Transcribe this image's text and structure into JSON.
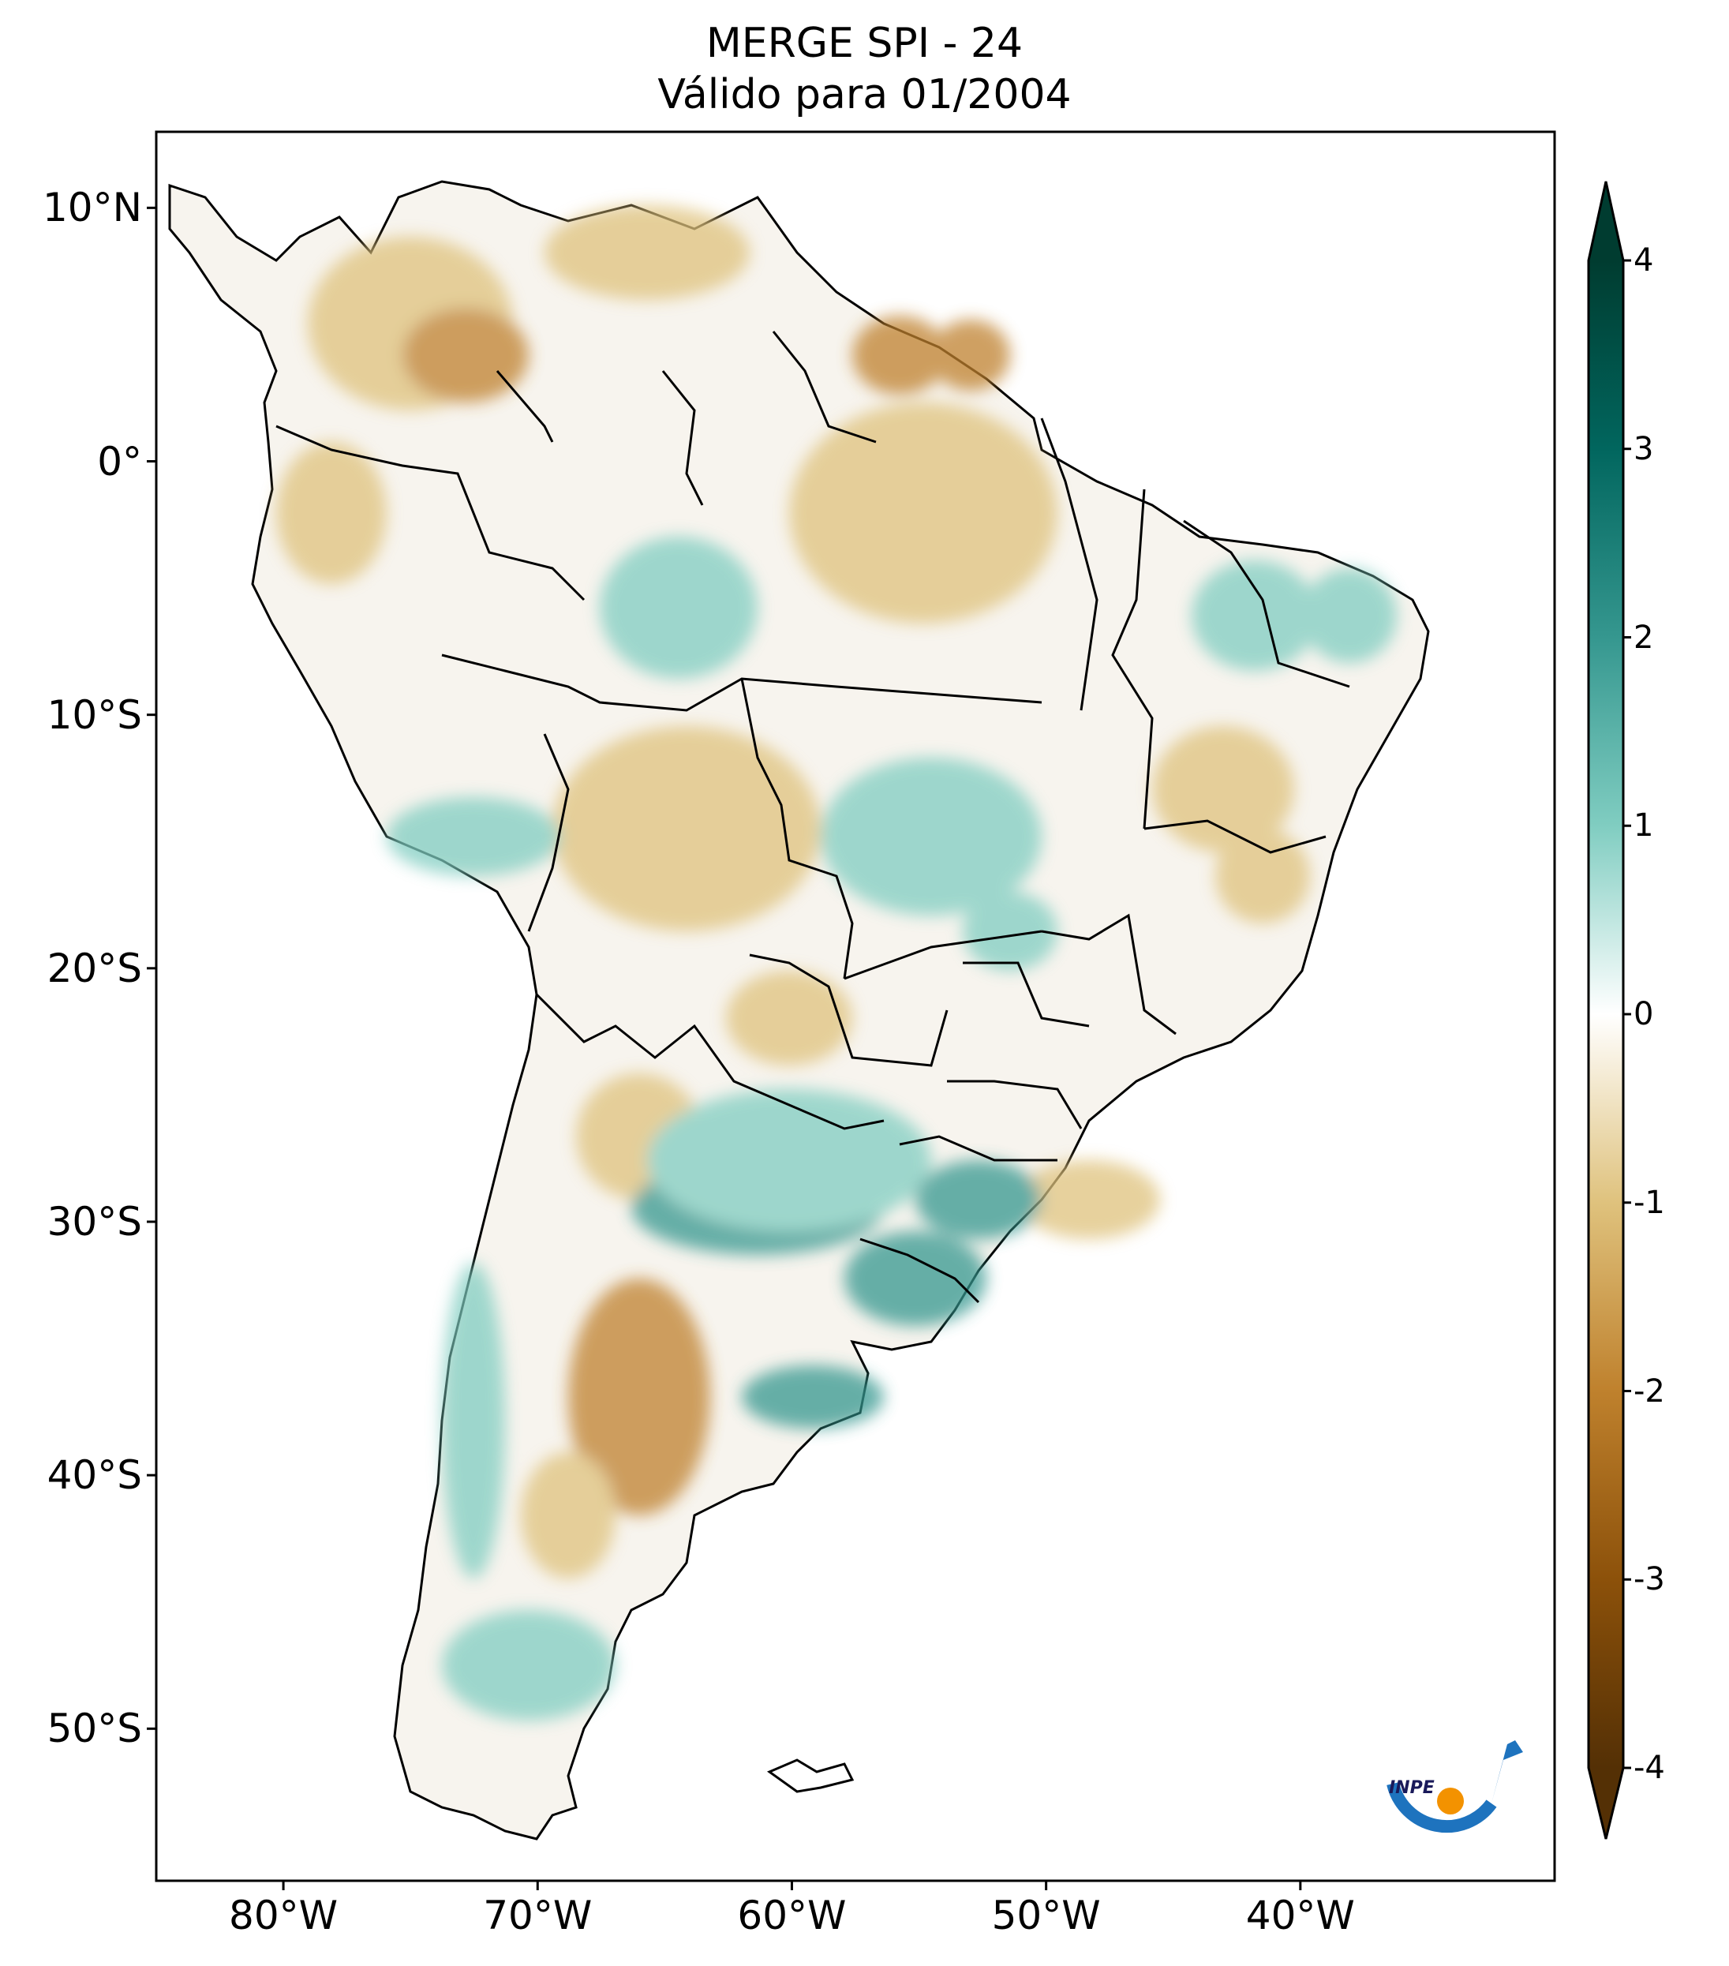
{
  "title": {
    "line1": "MERGE   SPI - 24",
    "line2": "Válido para 01/2004"
  },
  "axes": {
    "lat_ticks": [
      {
        "value": 10,
        "label": "10°N"
      },
      {
        "value": 0,
        "label": "0°"
      },
      {
        "value": -10,
        "label": "10°S"
      },
      {
        "value": -20,
        "label": "20°S"
      },
      {
        "value": -30,
        "label": "30°S"
      },
      {
        "value": -40,
        "label": "40°S"
      },
      {
        "value": -50,
        "label": "50°S"
      }
    ],
    "lon_ticks": [
      {
        "value": -80,
        "label": "80°W"
      },
      {
        "value": -70,
        "label": "70°W"
      },
      {
        "value": -60,
        "label": "60°W"
      },
      {
        "value": -50,
        "label": "50°W"
      },
      {
        "value": -40,
        "label": "40°W"
      }
    ],
    "lon_range": [
      -85,
      -30
    ],
    "lat_range": [
      -56,
      13
    ]
  },
  "colorbar": {
    "min": -4,
    "max": 4,
    "ticks": [
      "-4",
      "-3",
      "-2",
      "-1",
      "0",
      "1",
      "2",
      "3",
      "4"
    ],
    "colors": {
      "neg4": "#543005",
      "neg3": "#8c510a",
      "neg2": "#bf812d",
      "neg1": "#dfc27d",
      "zero": "#ffffff",
      "pos1": "#80cdc1",
      "pos2": "#35978f",
      "pos3": "#01665e",
      "pos4": "#003c30"
    }
  },
  "logo": {
    "text": "INPE"
  }
}
